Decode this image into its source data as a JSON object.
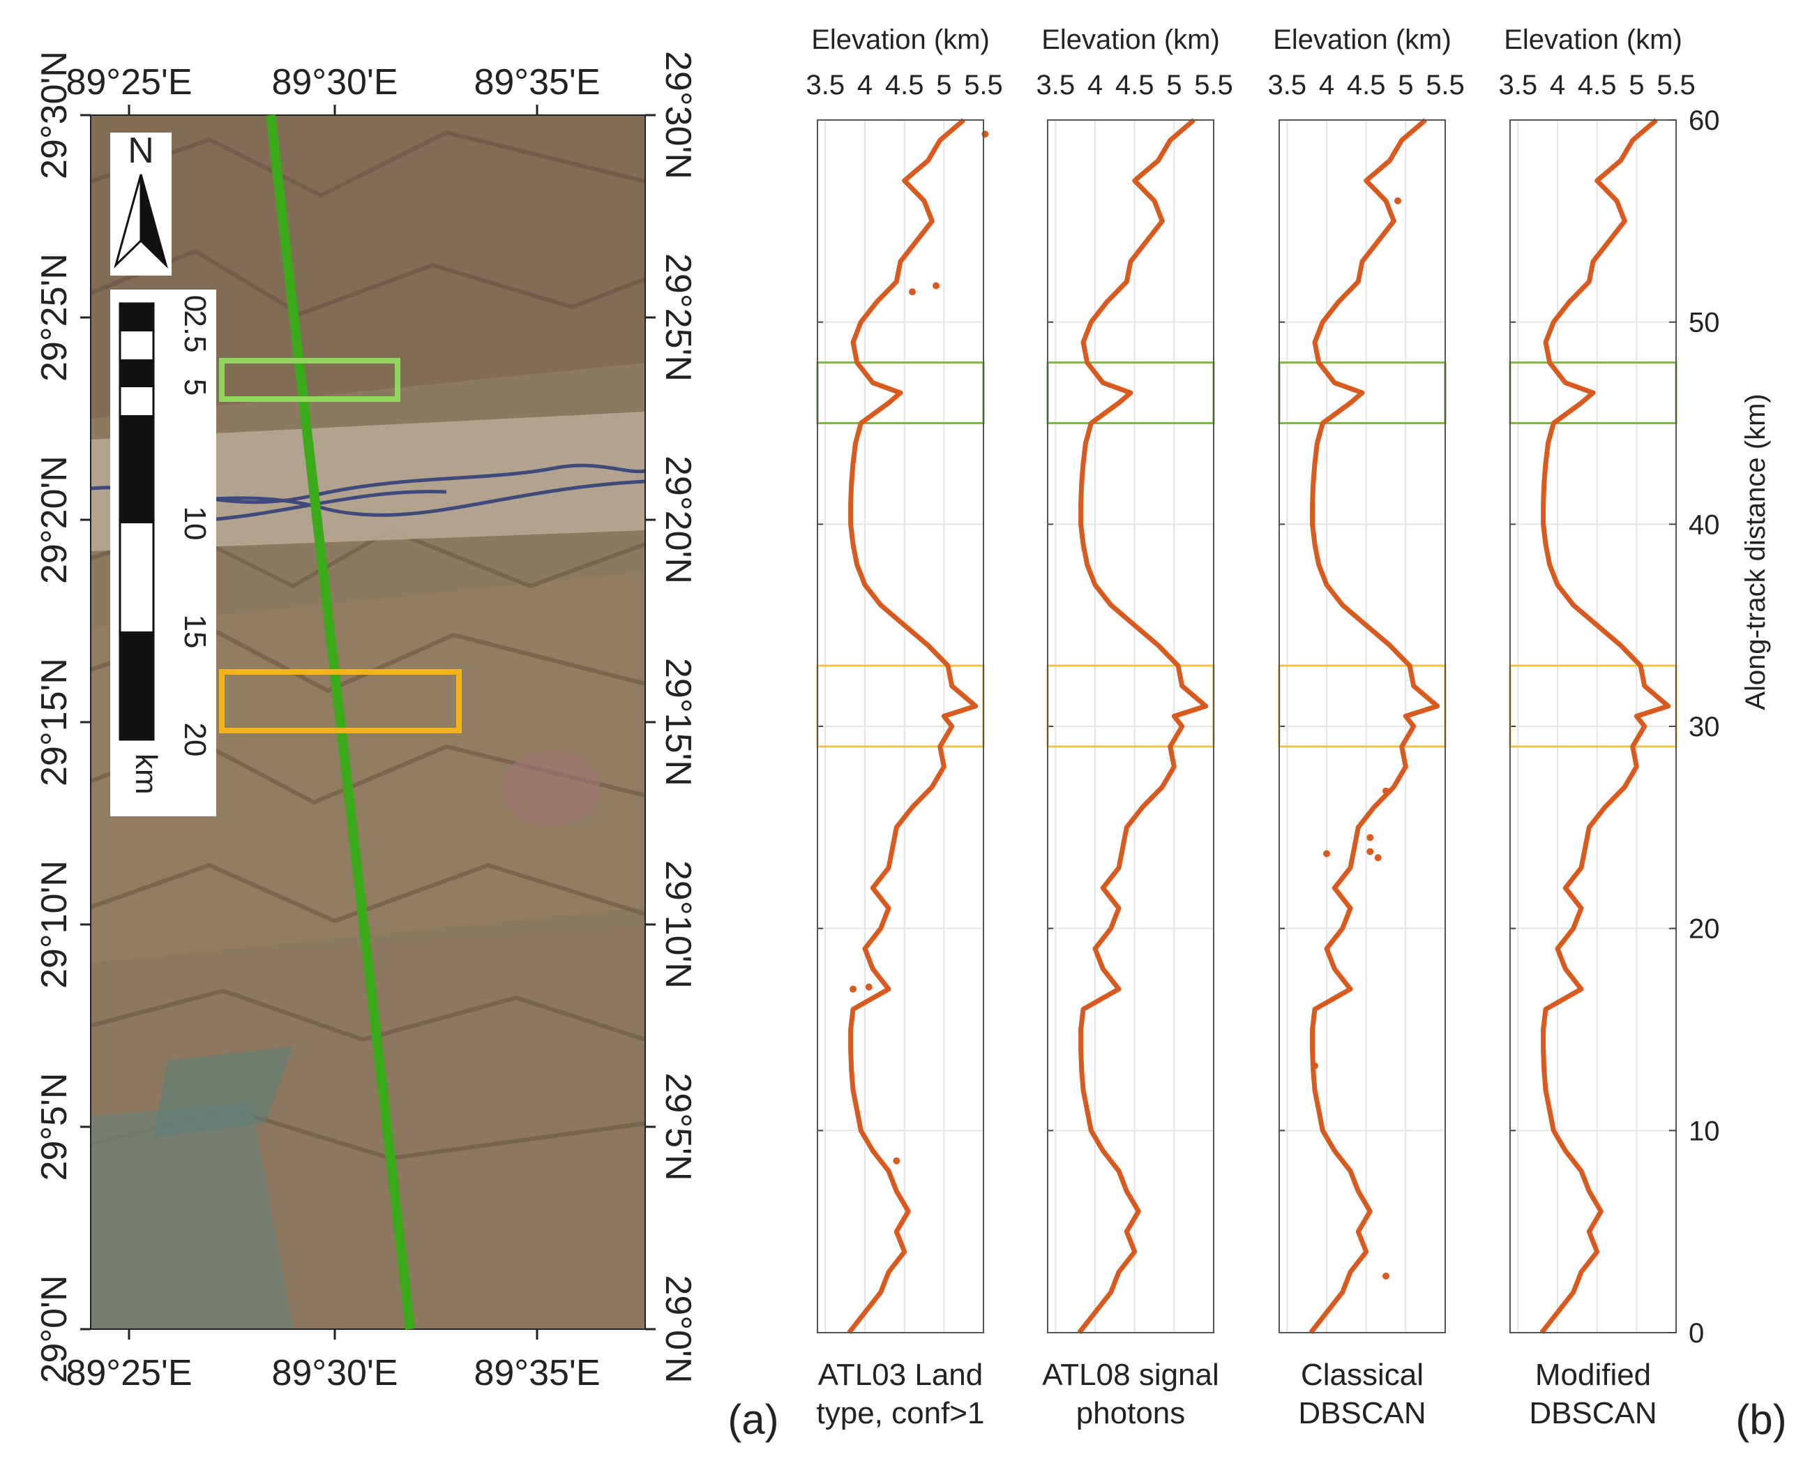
{
  "panel_labels": {
    "a": "(a)",
    "b": "(b)"
  },
  "map": {
    "lon_ticks": [
      "89°25'E",
      "89°30'E",
      "89°35'E"
    ],
    "lat_ticks": [
      "29°0'N",
      "29°5'N",
      "29°10'N",
      "29°15'N",
      "29°20'N",
      "29°25'N",
      "29°30'N"
    ],
    "north_label": "N",
    "scale_ticks": [
      "0",
      "2.5",
      "5",
      "10",
      "15",
      "20"
    ],
    "scale_unit": "km",
    "track_color": "#3aaa1a",
    "green_box_color": "#8fd65a",
    "orange_box_color": "#f5b31a"
  },
  "chart_data": {
    "type": "scatter",
    "series_color": "#d95a1e",
    "top_label": "Elevation (km)",
    "x_tick_labels": [
      "3.5",
      "4",
      "4.5",
      "5",
      "5.5"
    ],
    "xlim": [
      3.4,
      5.5
    ],
    "ylim": [
      0,
      60
    ],
    "ylabel": "Along-track distance (km)",
    "y_tick_labels": [
      "0",
      "10",
      "20",
      "30",
      "40",
      "50",
      "60"
    ],
    "highlight_ranges": [
      {
        "name": "green",
        "from": 45,
        "to": 48,
        "color": "#7db83f"
      },
      {
        "name": "orange",
        "from": 29,
        "to": 33,
        "color": "#f2c14a"
      }
    ],
    "profile": {
      "distance_km": [
        0,
        1,
        2,
        3,
        4,
        5,
        6,
        7,
        8,
        9,
        10,
        11,
        12,
        13,
        14,
        15,
        16,
        17,
        18,
        19,
        20,
        21,
        22,
        23,
        24,
        25,
        26,
        27,
        28,
        29,
        30,
        30.5,
        31,
        32,
        33,
        34,
        35,
        36,
        37,
        38,
        39,
        40,
        41,
        42,
        43,
        44,
        45,
        46,
        46.5,
        47,
        48,
        49,
        50,
        51,
        52,
        53,
        54,
        55,
        56,
        57,
        58,
        59,
        60
      ],
      "elevation_km": [
        3.8,
        4.0,
        4.2,
        4.3,
        4.5,
        4.4,
        4.55,
        4.4,
        4.3,
        4.1,
        3.95,
        3.9,
        3.85,
        3.83,
        3.82,
        3.82,
        3.85,
        4.3,
        4.1,
        4.0,
        4.2,
        4.3,
        4.1,
        4.3,
        4.35,
        4.4,
        4.6,
        4.85,
        5.0,
        4.95,
        5.1,
        5.0,
        5.4,
        5.1,
        5.05,
        4.8,
        4.5,
        4.2,
        4.0,
        3.9,
        3.85,
        3.82,
        3.82,
        3.83,
        3.85,
        3.88,
        3.95,
        4.3,
        4.45,
        4.1,
        3.9,
        3.85,
        3.95,
        4.15,
        4.4,
        4.45,
        4.65,
        4.85,
        4.75,
        4.5,
        4.8,
        4.95,
        5.25
      ]
    },
    "panels": [
      {
        "caption_1": "ATL03 Land",
        "caption_2": "type, conf>1",
        "outliers": [
          {
            "d": 51.5,
            "e": 4.6
          },
          {
            "d": 51.8,
            "e": 4.9
          },
          {
            "d": 17.0,
            "e": 3.85
          },
          {
            "d": 17.1,
            "e": 4.05
          },
          {
            "d": 59.3,
            "e": 5.52
          },
          {
            "d": 8.5,
            "e": 4.4
          }
        ]
      },
      {
        "caption_1": "ATL08 signal",
        "caption_2": "photons",
        "outliers": []
      },
      {
        "caption_1": "Classical",
        "caption_2": "DBSCAN",
        "outliers": [
          {
            "d": 23.7,
            "e": 4.0
          },
          {
            "d": 23.5,
            "e": 4.65
          },
          {
            "d": 23.8,
            "e": 4.55
          },
          {
            "d": 24.5,
            "e": 4.55
          },
          {
            "d": 26.8,
            "e": 4.75
          },
          {
            "d": 13.2,
            "e": 3.85
          },
          {
            "d": 2.8,
            "e": 4.75
          },
          {
            "d": 56.0,
            "e": 4.9
          }
        ]
      },
      {
        "caption_1": "Modified",
        "caption_2": "DBSCAN",
        "outliers": []
      }
    ]
  }
}
